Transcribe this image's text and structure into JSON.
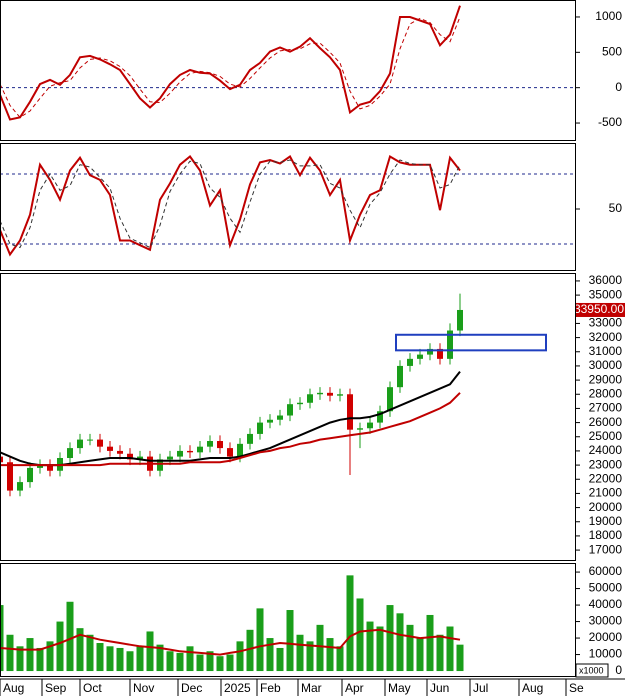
{
  "chart_data": [
    {
      "type": "line",
      "x": [
        0,
        1,
        2,
        3,
        4,
        5,
        6,
        7,
        8,
        9,
        10,
        11,
        12,
        13,
        14,
        15,
        16,
        17,
        18,
        19,
        20,
        21,
        22,
        23,
        24,
        25,
        26,
        27,
        28,
        29,
        30,
        31,
        32,
        33,
        34,
        35,
        36,
        37,
        38,
        39,
        40,
        41,
        42,
        43,
        44,
        45,
        46
      ],
      "series": [
        {
          "color": "#c00000",
          "dashed": false,
          "values": [
            -100,
            -450,
            -420,
            -200,
            50,
            110,
            40,
            180,
            430,
            450,
            400,
            330,
            250,
            50,
            -150,
            -280,
            -150,
            50,
            180,
            250,
            210,
            200,
            100,
            -20,
            40,
            250,
            350,
            510,
            570,
            510,
            580,
            700,
            560,
            430,
            250,
            -350,
            -240,
            -200,
            -50,
            200,
            1000,
            1000,
            950,
            900,
            600,
            750,
            1160
          ]
        },
        {
          "color": "#c00000",
          "dashed": true,
          "values": [
            50,
            -250,
            -420,
            -330,
            -150,
            20,
            70,
            100,
            280,
            400,
            420,
            380,
            300,
            170,
            -20,
            -200,
            -210,
            -80,
            80,
            200,
            230,
            210,
            160,
            50,
            10,
            130,
            280,
            420,
            520,
            540,
            550,
            620,
            630,
            500,
            350,
            -50,
            -300,
            -250,
            -120,
            50,
            550,
            900,
            980,
            920,
            750,
            650,
            1000
          ]
        }
      ],
      "hlines": [
        0
      ],
      "hline_color": "#1f2a8c",
      "xlim": [
        0,
        57.5
      ],
      "ylim": [
        -740,
        1240
      ],
      "yticks": [
        -500,
        0,
        500,
        1000
      ]
    },
    {
      "type": "line",
      "x": [
        0,
        1,
        2,
        3,
        4,
        5,
        6,
        7,
        8,
        9,
        10,
        11,
        12,
        13,
        14,
        15,
        16,
        17,
        18,
        19,
        20,
        21,
        22,
        23,
        24,
        25,
        26,
        27,
        28,
        29,
        30,
        31,
        32,
        33,
        34,
        35,
        36,
        37,
        38,
        39,
        40,
        41,
        42,
        43,
        44,
        45,
        46
      ],
      "series": [
        {
          "color": "#c00000",
          "dashed": false,
          "values": [
            32,
            11,
            23,
            45,
            88,
            75,
            58,
            83,
            94,
            79,
            75,
            62,
            23,
            23,
            19,
            15,
            58,
            72,
            88,
            95,
            83,
            53,
            66,
            19,
            41,
            71,
            90,
            92,
            89,
            95,
            79,
            94,
            83,
            62,
            75,
            23,
            45,
            62,
            66,
            95,
            90,
            88,
            88,
            88,
            49,
            94,
            83
          ]
        },
        {
          "color": "#333333",
          "dashed": true,
          "values": [
            40,
            20,
            17,
            34,
            66,
            80,
            66,
            70,
            88,
            86,
            77,
            68,
            42,
            25,
            21,
            17,
            36,
            65,
            80,
            91,
            89,
            68,
            60,
            42,
            30,
            56,
            80,
            91,
            90,
            92,
            87,
            87,
            88,
            72,
            68,
            49,
            34,
            54,
            64,
            80,
            92,
            89,
            88,
            88,
            68,
            71,
            88
          ]
        }
      ],
      "hlines": [
        20,
        80
      ],
      "hline_color": "#1f2a8c",
      "xlim": [
        0,
        57.5
      ],
      "ylim": [
        -2.3,
        106.6
      ],
      "yticks": [
        50
      ]
    },
    {
      "type": "candlestick",
      "x": [
        0,
        1,
        2,
        3,
        4,
        5,
        6,
        7,
        8,
        9,
        10,
        11,
        12,
        13,
        14,
        15,
        16,
        17,
        18,
        19,
        20,
        21,
        22,
        23,
        24,
        25,
        26,
        27,
        28,
        29,
        30,
        31,
        32,
        33,
        34,
        35,
        36,
        37,
        38,
        39,
        40,
        41,
        42,
        43,
        44,
        45,
        46
      ],
      "open": [
        23600,
        23200,
        21200,
        21800,
        22800,
        23000,
        22600,
        23500,
        24200,
        24800,
        24800,
        24300,
        24000,
        23800,
        23400,
        23600,
        22600,
        23400,
        23600,
        24000,
        23900,
        24300,
        24700,
        24200,
        23600,
        24500,
        25200,
        26000,
        26200,
        26500,
        27300,
        27400,
        28000,
        28100,
        27900,
        28000,
        25500,
        25600,
        26000,
        26800,
        28500,
        30000,
        30500,
        30800,
        31200,
        30500,
        32500
      ],
      "high": [
        24000,
        23600,
        22200,
        23200,
        23400,
        23400,
        23900,
        24600,
        25200,
        25200,
        25200,
        24700,
        24400,
        24200,
        24000,
        24000,
        23800,
        24000,
        24400,
        24400,
        24700,
        25100,
        25100,
        24600,
        24900,
        25600,
        26400,
        26600,
        26900,
        27700,
        27800,
        28400,
        28500,
        28500,
        28400,
        28400,
        26000,
        26400,
        27200,
        28900,
        30400,
        30900,
        31200,
        31600,
        31600,
        33000,
        35100
      ],
      "low": [
        22800,
        20800,
        20800,
        21400,
        22400,
        22200,
        22200,
        23100,
        23800,
        24400,
        23900,
        23600,
        23400,
        23000,
        23000,
        22200,
        22200,
        23000,
        23200,
        23500,
        23500,
        23900,
        23800,
        23200,
        23200,
        24100,
        24800,
        25600,
        25800,
        26100,
        26900,
        27000,
        27600,
        27500,
        27500,
        22300,
        24200,
        25200,
        25600,
        26400,
        28100,
        29600,
        30100,
        30400,
        30100,
        30100,
        32100
      ],
      "close": [
        23200,
        21200,
        21800,
        22800,
        23000,
        22600,
        23500,
        24200,
        24800,
        24800,
        24300,
        24000,
        23800,
        23400,
        23600,
        22600,
        23400,
        23600,
        24000,
        23900,
        24300,
        24700,
        24200,
        23600,
        24500,
        25200,
        26000,
        26200,
        26500,
        27300,
        27400,
        28000,
        28100,
        27900,
        28000,
        25500,
        25600,
        26000,
        26800,
        28500,
        30000,
        30500,
        30800,
        31200,
        30500,
        32500,
        33950
      ],
      "up_color": "#1a9e1a",
      "down_color": "#d00000",
      "lines": [
        {
          "color": "#000000",
          "values": [
            23900,
            23600,
            23300,
            23100,
            23000,
            23000,
            23000,
            23100,
            23200,
            23300,
            23400,
            23500,
            23500,
            23500,
            23400,
            23300,
            23300,
            23300,
            23300,
            23300,
            23400,
            23500,
            23500,
            23500,
            23600,
            23800,
            24000,
            24200,
            24500,
            24800,
            25100,
            25400,
            25700,
            26000,
            26200,
            26300,
            26300,
            26400,
            26600,
            26900,
            27200,
            27500,
            27800,
            28100,
            28400,
            28700,
            29600
          ]
        },
        {
          "color": "#c00000",
          "values": [
            23000,
            23000,
            23000,
            23000,
            23000,
            23000,
            23000,
            23000,
            23000,
            23000,
            23000,
            23100,
            23100,
            23100,
            23100,
            23100,
            23100,
            23100,
            23100,
            23200,
            23200,
            23200,
            23200,
            23300,
            23500,
            23700,
            23900,
            24000,
            24200,
            24300,
            24500,
            24600,
            24800,
            24900,
            25000,
            25100,
            25200,
            25300,
            25500,
            25700,
            25900,
            26100,
            26400,
            26700,
            27000,
            27400,
            28100
          ]
        }
      ],
      "zone": {
        "x": [
          39.6,
          54.6
        ],
        "y": [
          31100,
          32200
        ],
        "color": "#1f3fbf"
      },
      "last_label": "33950.00",
      "last_label_color": "#c00000",
      "xlim": [
        0,
        57.5
      ],
      "ylim": [
        16300,
        36560
      ],
      "yticks": [
        17000,
        18000,
        19000,
        20000,
        21000,
        22000,
        23000,
        24000,
        25000,
        26000,
        27000,
        28000,
        29000,
        30000,
        31000,
        32000,
        33000,
        34000,
        35000,
        36000
      ]
    },
    {
      "type": "bar",
      "x": [
        0,
        1,
        2,
        3,
        4,
        5,
        6,
        7,
        8,
        9,
        10,
        11,
        12,
        13,
        14,
        15,
        16,
        17,
        18,
        19,
        20,
        21,
        22,
        23,
        24,
        25,
        26,
        27,
        28,
        29,
        30,
        31,
        32,
        33,
        34,
        35,
        36,
        37,
        38,
        39,
        40,
        41,
        42,
        43,
        44,
        45,
        46
      ],
      "values": [
        40000,
        22000,
        15000,
        20000,
        14000,
        18000,
        30000,
        42000,
        26000,
        22000,
        17000,
        15000,
        14000,
        12000,
        15000,
        24000,
        16000,
        12000,
        11000,
        15000,
        10000,
        12000,
        9000,
        10000,
        18000,
        25000,
        38000,
        20000,
        14000,
        37000,
        22000,
        18000,
        28000,
        20000,
        15000,
        58000,
        44000,
        30000,
        27000,
        40000,
        35000,
        28000,
        20000,
        34000,
        22000,
        27000,
        16000
      ],
      "color": "#1a9e1a",
      "lines": [
        {
          "color": "#c00000",
          "values": [
            14000,
            13500,
            13000,
            13000,
            13000,
            15000,
            17000,
            19500,
            22000,
            20500,
            19000,
            18000,
            17000,
            16000,
            15000,
            14500,
            14000,
            13000,
            12000,
            11500,
            11000,
            10500,
            10000,
            11000,
            12000,
            13500,
            15000,
            16000,
            17000,
            16500,
            16000,
            15500,
            15000,
            14500,
            14000,
            21000,
            24000,
            24500,
            25000,
            23500,
            22000,
            21000,
            20000,
            20500,
            21000,
            20000,
            19000
          ]
        }
      ],
      "unit_label": "x1000",
      "xlim": [
        0,
        57.5
      ],
      "ylim": [
        -3000,
        65500
      ],
      "yticks": [
        0,
        10000,
        20000,
        30000,
        40000,
        50000,
        60000
      ],
      "xticks": [
        {
          "value": 0,
          "label": "Aug"
        },
        {
          "value": 4.2,
          "label": "Sep"
        },
        {
          "value": 8.0,
          "label": "Oct"
        },
        {
          "value": 13.0,
          "label": "Nov"
        },
        {
          "value": 17.8,
          "label": "Dec"
        },
        {
          "value": 22.1,
          "label": "2025"
        },
        {
          "value": 25.7,
          "label": "Feb"
        },
        {
          "value": 29.8,
          "label": "Mar"
        },
        {
          "value": 34.2,
          "label": "Apr"
        },
        {
          "value": 38.5,
          "label": "May"
        },
        {
          "value": 42.7,
          "label": "Jun"
        },
        {
          "value": 47.0,
          "label": "Jul"
        },
        {
          "value": 51.9,
          "label": "Aug"
        },
        {
          "value": 56.6,
          "label": "Se"
        }
      ]
    }
  ]
}
